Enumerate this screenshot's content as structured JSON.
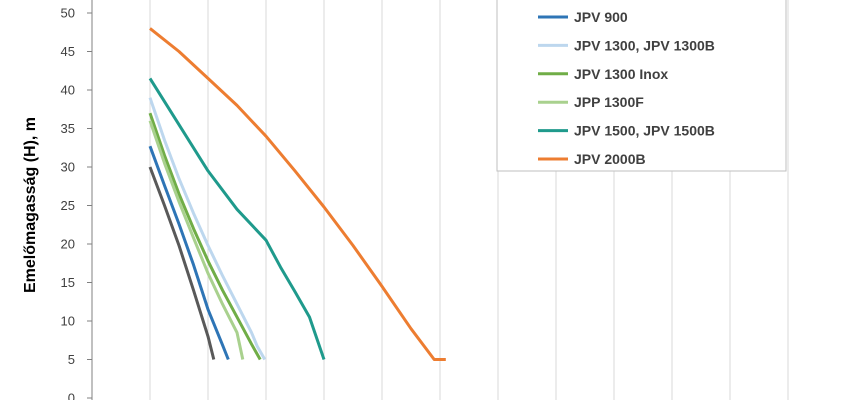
{
  "chart_data": {
    "type": "line",
    "title": "",
    "xlabel": "",
    "ylabel": "Emelőmagasság (H), m",
    "ylim": [
      0,
      50
    ],
    "xlim": [
      0,
      7
    ],
    "y_ticks": [
      "0",
      "5",
      "10",
      "15",
      "20",
      "25",
      "30",
      "35",
      "40",
      "45",
      "50"
    ],
    "grid": "vertical",
    "legend_position": "top-right",
    "series": [
      {
        "name": "",
        "color": "#595959",
        "x": [
          1.0,
          1.25,
          1.5,
          1.75,
          2.0,
          2.1
        ],
        "y": [
          30,
          25,
          19.8,
          14,
          8,
          5
        ]
      },
      {
        "name": "JPV 900",
        "color": "#2e75b6",
        "x": [
          1.0,
          1.25,
          1.5,
          1.75,
          2.0,
          2.25,
          2.35
        ],
        "y": [
          32.7,
          27.6,
          22.6,
          17.3,
          11.5,
          6.9,
          5
        ]
      },
      {
        "name": "JPV 1300, JPV 1300B",
        "color": "#bdd7ee",
        "x": [
          1.0,
          1.25,
          1.5,
          1.75,
          2.0,
          2.25,
          2.5,
          2.75,
          2.85,
          2.98
        ],
        "y": [
          39,
          33.5,
          28.5,
          24,
          19.8,
          15.9,
          12.2,
          8.5,
          6.7,
          5
        ]
      },
      {
        "name": "JPV 1300 Inox",
        "color": "#70ad47",
        "x": [
          1.0,
          1.25,
          1.5,
          1.75,
          2.0,
          2.25,
          2.5,
          2.75,
          2.9
        ],
        "y": [
          37,
          31.5,
          26.5,
          22,
          17.8,
          14,
          10.5,
          7,
          5
        ]
      },
      {
        "name": "JPP 1300F",
        "color": "#a9d18e",
        "x": [
          1.0,
          1.25,
          1.5,
          1.75,
          2.0,
          2.25,
          2.5,
          2.6
        ],
        "y": [
          36,
          30.5,
          25.5,
          20.8,
          16.2,
          12.2,
          8.5,
          5
        ]
      },
      {
        "name": "JPV 1500, JPV 1500B",
        "color": "#1f9a8c",
        "x": [
          1.0,
          1.5,
          2.0,
          2.5,
          3.0,
          3.25,
          3.5,
          3.75,
          4.0
        ],
        "y": [
          41.5,
          35.5,
          29.5,
          24.5,
          20.5,
          17,
          13.8,
          10.5,
          5
        ]
      },
      {
        "name": "JPV 2000B",
        "color": "#ed7d31",
        "x": [
          1.0,
          1.5,
          2.0,
          2.5,
          3.0,
          3.5,
          4.0,
          4.5,
          5.0,
          5.5,
          5.9,
          6.1
        ],
        "y": [
          48,
          45,
          41.5,
          38,
          34,
          29.5,
          24.8,
          19.8,
          14.5,
          9,
          5,
          5
        ]
      }
    ]
  }
}
